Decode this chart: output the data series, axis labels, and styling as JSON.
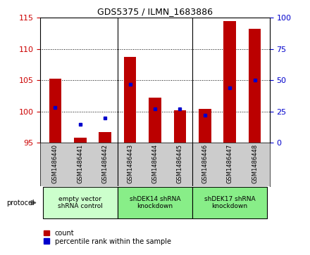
{
  "title": "GDS5375 / ILMN_1683886",
  "samples": [
    "GSM1486440",
    "GSM1486441",
    "GSM1486442",
    "GSM1486443",
    "GSM1486444",
    "GSM1486445",
    "GSM1486446",
    "GSM1486447",
    "GSM1486448"
  ],
  "counts": [
    105.3,
    95.8,
    96.7,
    108.7,
    102.2,
    100.2,
    100.4,
    114.5,
    113.2
  ],
  "percentiles": [
    28,
    15,
    20,
    47,
    27,
    27,
    22,
    44,
    50
  ],
  "ylim_left": [
    95,
    115
  ],
  "ylim_right": [
    0,
    100
  ],
  "yticks_left": [
    95,
    100,
    105,
    110,
    115
  ],
  "yticks_right": [
    0,
    25,
    50,
    75,
    100
  ],
  "groups": [
    {
      "label": "empty vector\nshRNA control",
      "start": 0,
      "end": 3,
      "color": "#ccffcc"
    },
    {
      "label": "shDEK14 shRNA\nknockdown",
      "start": 3,
      "end": 6,
      "color": "#88ee88"
    },
    {
      "label": "shDEK17 shRNA\nknockdown",
      "start": 6,
      "end": 9,
      "color": "#88ee88"
    }
  ],
  "bar_color": "#bb0000",
  "dot_color": "#0000cc",
  "bar_width": 0.5,
  "bar_bottom": 95,
  "left_label_color": "#cc0000",
  "right_label_color": "#0000cc",
  "grid_color": "#000000",
  "bg_color": "#ffffff",
  "plot_bg": "#ffffff",
  "xlabel_area_color": "#cccccc",
  "grid_yticks": [
    100,
    105,
    110
  ],
  "legend_items": [
    "count",
    "percentile rank within the sample"
  ]
}
